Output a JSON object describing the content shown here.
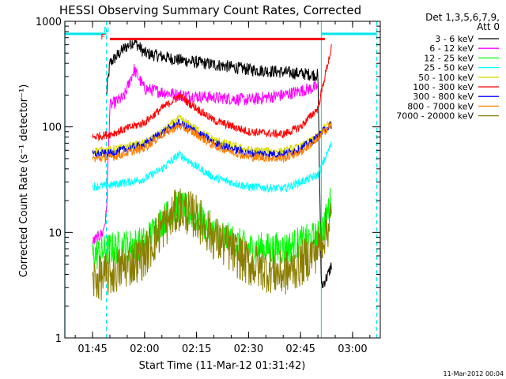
{
  "chart_data": {
    "type": "line",
    "title": "HESSI Observing Summary Count Rates, Corrected",
    "xlabel": "Start Time (11-Mar-12 01:31:42)",
    "ylabel": "Corrected Count Rate (s⁻¹ detector⁻¹)",
    "y_scale": "log",
    "ylim": [
      1,
      1000
    ],
    "xlim": [
      "01:37",
      "03:08"
    ],
    "x_ticks": [
      "01:45",
      "02:00",
      "02:15",
      "02:30",
      "02:45",
      "03:00"
    ],
    "y_ticks": [
      "1",
      "10",
      "100",
      "1000"
    ],
    "legend_title": [
      "Det 1,3,5,6,7,9,",
      "Att 0"
    ],
    "legend_position": "top-right",
    "grid": false,
    "footer": "11-Mar-2012 00:04",
    "annotations": [
      {
        "text": "F",
        "color": "#ff0000",
        "x": "01:48"
      },
      {
        "text": "N",
        "color": "#00e5ee",
        "x": "01:49"
      }
    ],
    "flare_bar": {
      "label": "F",
      "start": "01:50",
      "end": "02:52",
      "level": 680,
      "color": "#ff0000"
    },
    "night_bars": [
      {
        "start": "01:37",
        "end": "01:49",
        "level": 760,
        "color": "#00e5ee"
      },
      {
        "start": "02:51",
        "end": "03:07",
        "level": 760,
        "color": "#00e5ee"
      }
    ],
    "night_markers": {
      "solid": [
        "01:37",
        "02:51"
      ],
      "dashed": [
        "01:49",
        "03:07"
      ],
      "color": "#00e5ee"
    },
    "time_key": [
      "01:45",
      "01:46",
      "01:48",
      "01:50",
      "02:00",
      "02:10",
      "02:15",
      "02:30",
      "02:40",
      "02:45",
      "02:48",
      "02:50",
      "02:52",
      "02:53",
      "02:54"
    ],
    "series": [
      {
        "name": "3 - 6 keV",
        "color": "#000000",
        "x": [
          "01:49",
          "01:50",
          "01:54",
          "01:57",
          "02:00",
          "02:10",
          "02:20",
          "02:30",
          "02:40",
          "02:50",
          "02:51",
          "02:52",
          "02:53",
          "02:54"
        ],
        "y": [
          200,
          400,
          550,
          650,
          500,
          430,
          390,
          350,
          330,
          310,
          3,
          3.5,
          4,
          5
        ]
      },
      {
        "name": "6 - 12 keV",
        "color": "#ff00ff",
        "x": [
          "01:45",
          "01:48",
          "01:49",
          "01:50",
          "01:54",
          "01:57",
          "02:00",
          "02:10",
          "02:20",
          "02:30",
          "02:40",
          "02:50"
        ],
        "y": [
          8,
          10,
          15,
          160,
          190,
          350,
          230,
          200,
          190,
          180,
          200,
          240
        ]
      },
      {
        "name": "12 - 25 keV",
        "color": "#00ff00",
        "x": [
          "01:45",
          "01:50",
          "02:00",
          "02:05",
          "02:10",
          "02:15",
          "02:20",
          "02:30",
          "02:40",
          "02:45",
          "02:50",
          "02:52",
          "02:54"
        ],
        "y": [
          6,
          7,
          8,
          13,
          18,
          14,
          10,
          7,
          7,
          8,
          9,
          12,
          22
        ]
      },
      {
        "name": "25 - 50 keV",
        "color": "#00ffff",
        "x": [
          "01:45",
          "01:50",
          "02:00",
          "02:05",
          "02:10",
          "02:15",
          "02:20",
          "02:30",
          "02:40",
          "02:45",
          "02:50",
          "02:52",
          "02:54"
        ],
        "y": [
          27,
          28,
          32,
          40,
          55,
          42,
          33,
          27,
          26,
          30,
          35,
          50,
          70
        ]
      },
      {
        "name": "50 - 100 keV",
        "color": "#d8d800",
        "x": [
          "01:45",
          "01:50",
          "02:00",
          "02:05",
          "02:10",
          "02:15",
          "02:20",
          "02:30",
          "02:40",
          "02:45",
          "02:50",
          "02:52",
          "02:54"
        ],
        "y": [
          60,
          60,
          70,
          90,
          120,
          95,
          75,
          60,
          58,
          65,
          80,
          100,
          110
        ]
      },
      {
        "name": "100 - 300 keV",
        "color": "#ff0000",
        "x": [
          "01:45",
          "01:50",
          "02:00",
          "02:05",
          "02:10",
          "02:15",
          "02:20",
          "02:30",
          "02:40",
          "02:45",
          "02:50",
          "02:52",
          "02:54"
        ],
        "y": [
          80,
          85,
          110,
          150,
          195,
          150,
          115,
          90,
          85,
          100,
          150,
          300,
          580
        ]
      },
      {
        "name": "300 - 800 keV",
        "color": "#0000ff",
        "x": [
          "01:45",
          "01:50",
          "02:00",
          "02:05",
          "02:10",
          "02:15",
          "02:20",
          "02:30",
          "02:40",
          "02:45",
          "02:50",
          "02:52",
          "02:54"
        ],
        "y": [
          55,
          56,
          68,
          88,
          108,
          90,
          70,
          56,
          55,
          62,
          80,
          95,
          105
        ]
      },
      {
        "name": "800 - 7000 keV",
        "color": "#ff7f00",
        "x": [
          "01:45",
          "01:50",
          "02:00",
          "02:05",
          "02:10",
          "02:15",
          "02:20",
          "02:30",
          "02:40",
          "02:45",
          "02:50",
          "02:52",
          "02:54"
        ],
        "y": [
          50,
          51,
          63,
          84,
          102,
          85,
          66,
          52,
          50,
          58,
          76,
          92,
          105
        ]
      },
      {
        "name": "7000 - 20000 keV",
        "color": "#8b7d00",
        "x": [
          "01:45",
          "01:50",
          "02:00",
          "02:05",
          "02:10",
          "02:15",
          "02:20",
          "02:30",
          "02:40",
          "02:45",
          "02:50",
          "02:52",
          "02:54"
        ],
        "y": [
          3.5,
          4,
          6,
          11,
          17,
          14,
          9,
          5,
          4,
          5,
          7,
          10,
          14
        ]
      }
    ]
  }
}
